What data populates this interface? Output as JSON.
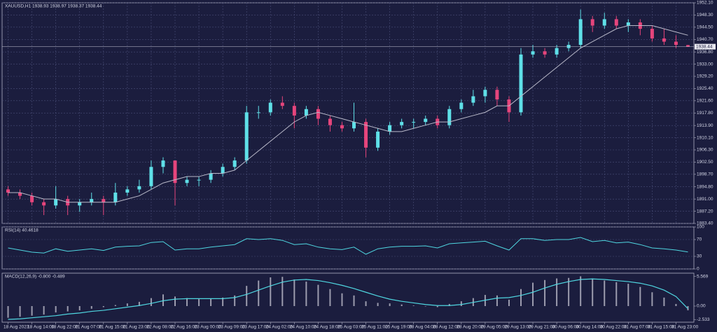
{
  "chart_data": [
    {
      "type": "candlestick",
      "title": "XAUUSD,H1  1938.93 1938.97 1938.37 1938.44",
      "categories": [
        "18 Aug 2023",
        null,
        "18 Aug 14:00",
        null,
        "18 Aug 22:00",
        null,
        "21 Aug 07:00",
        null,
        "21 Aug 15:00",
        null,
        "21 Aug 23:00",
        null,
        "22 Aug 08:00",
        null,
        "22 Aug 16:00",
        null,
        "23 Aug 00:00",
        null,
        "23 Aug 09:00",
        null,
        "23 Aug 17:00",
        null,
        "24 Aug 02:00",
        null,
        "24 Aug 10:00",
        null,
        "24 Aug 18:00",
        null,
        "25 Aug 03:00",
        null,
        "25 Aug 11:00",
        null,
        "25 Aug 19:00",
        null,
        "28 Aug 04:00",
        null,
        "28 Aug 12:00",
        null,
        "28 Aug 20:00",
        null,
        "29 Aug 05:00",
        null,
        "29 Aug 13:00",
        null,
        "29 Aug 21:00",
        null,
        "30 Aug 06:00",
        null,
        "30 Aug 14:00",
        null,
        "30 Aug 22:00",
        null,
        "31 Aug 07:00",
        null,
        "31 Aug 15:00",
        null,
        "31 Aug 23:00",
        null
      ],
      "open": [
        1894,
        1893,
        1892,
        1890,
        1889,
        1891,
        1889,
        1890,
        1891,
        1890,
        1893,
        1894,
        1895,
        1901,
        1903,
        1896,
        1897,
        1897,
        1899,
        1901,
        1903,
        1918,
        1918,
        1921,
        1920,
        1917,
        1919,
        1916,
        1914,
        1913,
        1915,
        1907,
        1912,
        1914,
        1915,
        1915,
        1916,
        1914,
        1919,
        1921,
        1923,
        1925,
        1922,
        1918,
        1936,
        1937,
        1936,
        1938,
        1939,
        1947,
        1945,
        1947,
        1945,
        1946,
        1944,
        1941,
        1940,
        1938.93
      ],
      "high": [
        1895,
        1894,
        1893,
        1891,
        1895,
        1892,
        1891,
        1893,
        1892,
        1896,
        1895,
        1897,
        1903,
        1904,
        1903,
        1898,
        1898,
        1900,
        1902,
        1904,
        1920,
        1920,
        1922,
        1923,
        1921,
        1920,
        1920,
        1917,
        1915,
        1921,
        1916,
        1913,
        1915,
        1916,
        1916,
        1917,
        1917,
        1920,
        1922,
        1925,
        1926,
        1926,
        1923,
        1938,
        1939,
        1938,
        1939,
        1940,
        1950,
        1948,
        1949,
        1948,
        1947,
        1947,
        1945,
        1944,
        1942,
        1938.97
      ],
      "low": [
        1892,
        1891,
        1889,
        1886,
        1888,
        1886,
        1887,
        1889,
        1886,
        1889,
        1892,
        1893,
        1894,
        1899,
        1889,
        1895,
        1895,
        1896,
        1898,
        1900,
        1902,
        1916,
        1917,
        1919,
        1913,
        1916,
        1914,
        1912,
        1912,
        1912,
        1904,
        1906,
        1911,
        1913,
        1913,
        1914,
        1913,
        1913,
        1918,
        1920,
        1921,
        1920,
        1915,
        1917,
        1935,
        1935,
        1935,
        1937,
        1938,
        1943,
        1944,
        1944,
        1943,
        1942,
        1940,
        1939,
        1938,
        1938.37
      ],
      "close": [
        1893,
        1892,
        1890,
        1889,
        1891,
        1889,
        1890,
        1891,
        1890,
        1893,
        1894,
        1895,
        1901,
        1903,
        1896,
        1897,
        1897,
        1899,
        1901,
        1903,
        1918,
        1918,
        1921,
        1920,
        1917,
        1919,
        1916,
        1914,
        1913,
        1915,
        1907,
        1912,
        1914,
        1915,
        1915,
        1916,
        1914,
        1919,
        1921,
        1923,
        1925,
        1922,
        1918,
        1936,
        1937,
        1936,
        1938,
        1939,
        1947,
        1945,
        1947,
        1945,
        1946,
        1944,
        1941,
        1940,
        1939,
        1938.44
      ],
      "up_color": "#5fe0e8",
      "down_color": "#e6457c",
      "ma": {
        "color": "#b9b9c9",
        "values": [
          1893,
          1893,
          1892,
          1891,
          1891,
          1890,
          1890,
          1890,
          1890,
          1890,
          1891,
          1892,
          1894,
          1896,
          1897,
          1898,
          1898,
          1899,
          1899,
          1900,
          1903,
          1906,
          1909,
          1912,
          1915,
          1917,
          1918,
          1917,
          1916,
          1915,
          1914,
          1913,
          1912,
          1912,
          1913,
          1914,
          1915,
          1915,
          1916,
          1917,
          1918,
          1920,
          1920,
          1923,
          1926,
          1929,
          1932,
          1935,
          1938,
          1940,
          1942,
          1944,
          1945,
          1945,
          1945,
          1944,
          1943,
          1942
        ]
      },
      "current_price": 1938.44,
      "ylim": [
        1883.4,
        1952.1
      ],
      "yticks": [
        {
          "value": 1883.4,
          "label": "1883.40"
        },
        {
          "value": 1887.2,
          "label": "1887.20"
        },
        {
          "value": 1891,
          "label": "1891.00"
        },
        {
          "value": 1894.8,
          "label": "1894.80"
        },
        {
          "value": 1898.7,
          "label": "1898.70"
        },
        {
          "value": 1902.5,
          "label": "1902.50"
        },
        {
          "value": 1906.3,
          "label": "1906.30"
        },
        {
          "value": 1910.1,
          "label": "1910.10"
        },
        {
          "value": 1913.9,
          "label": "1913.90"
        },
        {
          "value": 1917.8,
          "label": "1917.80"
        },
        {
          "value": 1921.6,
          "label": "1921.60"
        },
        {
          "value": 1925.4,
          "label": "1925.40"
        },
        {
          "value": 1929.2,
          "label": "1929.20"
        },
        {
          "value": 1933,
          "label": "1933.00"
        },
        {
          "value": 1936.8,
          "label": "1936.80"
        },
        {
          "value": 1940.7,
          "label": "1940.70"
        },
        {
          "value": 1944.5,
          "label": "1944.50"
        },
        {
          "value": 1948.3,
          "label": "1948.30"
        },
        {
          "value": 1952.1,
          "label": "1952.10"
        }
      ],
      "grid": true
    },
    {
      "type": "line",
      "title": "RSI(14) 40.4618",
      "color": "#4fd6e0",
      "values": [
        50,
        45,
        40,
        38,
        48,
        42,
        45,
        48,
        44,
        52,
        54,
        55,
        63,
        65,
        45,
        48,
        48,
        52,
        55,
        58,
        72,
        70,
        72,
        68,
        58,
        60,
        52,
        48,
        46,
        52,
        35,
        48,
        52,
        54,
        54,
        55,
        50,
        60,
        62,
        64,
        66,
        55,
        45,
        72,
        72,
        68,
        70,
        70,
        75,
        65,
        68,
        62,
        64,
        58,
        50,
        48,
        45,
        40.4618
      ],
      "ylim": [
        0,
        100
      ],
      "yticks": [
        0,
        30,
        70,
        100
      ],
      "grid": true
    },
    {
      "type": "macd",
      "title": "MACD(12,26,9) -0.800 -0.489",
      "histogram_color": "#9c9cae",
      "histogram": [
        -2.2,
        -2.0,
        -1.8,
        -1.6,
        -1.2,
        -1.0,
        -0.8,
        -0.5,
        -0.2,
        0.2,
        0.5,
        0.8,
        1.5,
        2.2,
        1.8,
        1.5,
        1.3,
        1.4,
        1.6,
        2.0,
        3.8,
        4.8,
        5.4,
        5.5,
        5.0,
        4.6,
        4.0,
        3.2,
        2.4,
        2.0,
        0.9,
        0.6,
        0.5,
        0.3,
        0.1,
        0.0,
        -0.2,
        0.4,
        0.9,
        1.5,
        2.1,
        2.0,
        1.2,
        3.2,
        4.4,
        4.9,
        5.2,
        5.3,
        5.6,
        5.2,
        4.8,
        4.5,
        4.2,
        3.6,
        2.6,
        1.6,
        0.4,
        -0.8
      ],
      "signal_color": "#4fd6e0",
      "signal": [
        -2.5,
        -2.4,
        -2.2,
        -2.0,
        -1.8,
        -1.5,
        -1.3,
        -1.0,
        -0.8,
        -0.5,
        -0.2,
        0.1,
        0.5,
        1.0,
        1.3,
        1.4,
        1.4,
        1.4,
        1.4,
        1.6,
        2.2,
        3.0,
        3.8,
        4.5,
        4.9,
        5.0,
        4.8,
        4.4,
        3.9,
        3.3,
        2.6,
        1.9,
        1.3,
        0.9,
        0.6,
        0.3,
        0.1,
        0.1,
        0.3,
        0.7,
        1.1,
        1.5,
        1.6,
        2.0,
        2.6,
        3.4,
        4.1,
        4.6,
        5.0,
        5.1,
        5.0,
        4.8,
        4.6,
        4.3,
        3.8,
        3.0,
        1.8,
        -0.489
      ],
      "ylim": [
        -3.03,
        6.19
      ],
      "yticks": [
        -2.533,
        {
          "value": 0,
          "label": "0.00"
        },
        5.569
      ],
      "grid": false
    }
  ]
}
